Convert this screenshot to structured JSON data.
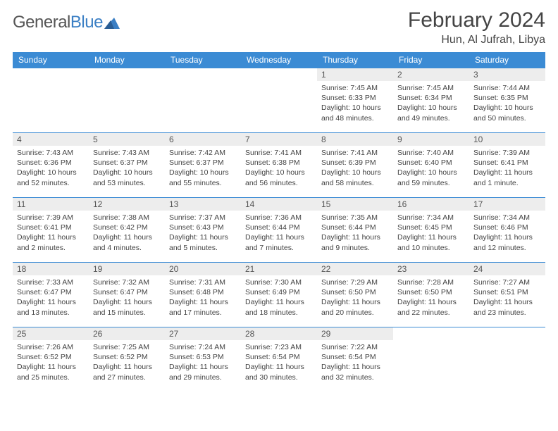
{
  "brand": {
    "part1": "General",
    "part2": "Blue"
  },
  "title": "February 2024",
  "location": "Hun, Al Jufrah, Libya",
  "colors": {
    "header_bg": "#3b8bd4",
    "header_text": "#ffffff",
    "daynum_bg": "#ededed",
    "border": "#3b8bd4",
    "text": "#444444",
    "brand_gray": "#555555",
    "brand_blue": "#3b7fc4"
  },
  "weekdays": [
    "Sunday",
    "Monday",
    "Tuesday",
    "Wednesday",
    "Thursday",
    "Friday",
    "Saturday"
  ],
  "start_day_index": 4,
  "days": [
    {
      "n": 1,
      "sunrise": "7:45 AM",
      "sunset": "6:33 PM",
      "daylight": "10 hours and 48 minutes."
    },
    {
      "n": 2,
      "sunrise": "7:45 AM",
      "sunset": "6:34 PM",
      "daylight": "10 hours and 49 minutes."
    },
    {
      "n": 3,
      "sunrise": "7:44 AM",
      "sunset": "6:35 PM",
      "daylight": "10 hours and 50 minutes."
    },
    {
      "n": 4,
      "sunrise": "7:43 AM",
      "sunset": "6:36 PM",
      "daylight": "10 hours and 52 minutes."
    },
    {
      "n": 5,
      "sunrise": "7:43 AM",
      "sunset": "6:37 PM",
      "daylight": "10 hours and 53 minutes."
    },
    {
      "n": 6,
      "sunrise": "7:42 AM",
      "sunset": "6:37 PM",
      "daylight": "10 hours and 55 minutes."
    },
    {
      "n": 7,
      "sunrise": "7:41 AM",
      "sunset": "6:38 PM",
      "daylight": "10 hours and 56 minutes."
    },
    {
      "n": 8,
      "sunrise": "7:41 AM",
      "sunset": "6:39 PM",
      "daylight": "10 hours and 58 minutes."
    },
    {
      "n": 9,
      "sunrise": "7:40 AM",
      "sunset": "6:40 PM",
      "daylight": "10 hours and 59 minutes."
    },
    {
      "n": 10,
      "sunrise": "7:39 AM",
      "sunset": "6:41 PM",
      "daylight": "11 hours and 1 minute."
    },
    {
      "n": 11,
      "sunrise": "7:39 AM",
      "sunset": "6:41 PM",
      "daylight": "11 hours and 2 minutes."
    },
    {
      "n": 12,
      "sunrise": "7:38 AM",
      "sunset": "6:42 PM",
      "daylight": "11 hours and 4 minutes."
    },
    {
      "n": 13,
      "sunrise": "7:37 AM",
      "sunset": "6:43 PM",
      "daylight": "11 hours and 5 minutes."
    },
    {
      "n": 14,
      "sunrise": "7:36 AM",
      "sunset": "6:44 PM",
      "daylight": "11 hours and 7 minutes."
    },
    {
      "n": 15,
      "sunrise": "7:35 AM",
      "sunset": "6:44 PM",
      "daylight": "11 hours and 9 minutes."
    },
    {
      "n": 16,
      "sunrise": "7:34 AM",
      "sunset": "6:45 PM",
      "daylight": "11 hours and 10 minutes."
    },
    {
      "n": 17,
      "sunrise": "7:34 AM",
      "sunset": "6:46 PM",
      "daylight": "11 hours and 12 minutes."
    },
    {
      "n": 18,
      "sunrise": "7:33 AM",
      "sunset": "6:47 PM",
      "daylight": "11 hours and 13 minutes."
    },
    {
      "n": 19,
      "sunrise": "7:32 AM",
      "sunset": "6:47 PM",
      "daylight": "11 hours and 15 minutes."
    },
    {
      "n": 20,
      "sunrise": "7:31 AM",
      "sunset": "6:48 PM",
      "daylight": "11 hours and 17 minutes."
    },
    {
      "n": 21,
      "sunrise": "7:30 AM",
      "sunset": "6:49 PM",
      "daylight": "11 hours and 18 minutes."
    },
    {
      "n": 22,
      "sunrise": "7:29 AM",
      "sunset": "6:50 PM",
      "daylight": "11 hours and 20 minutes."
    },
    {
      "n": 23,
      "sunrise": "7:28 AM",
      "sunset": "6:50 PM",
      "daylight": "11 hours and 22 minutes."
    },
    {
      "n": 24,
      "sunrise": "7:27 AM",
      "sunset": "6:51 PM",
      "daylight": "11 hours and 23 minutes."
    },
    {
      "n": 25,
      "sunrise": "7:26 AM",
      "sunset": "6:52 PM",
      "daylight": "11 hours and 25 minutes."
    },
    {
      "n": 26,
      "sunrise": "7:25 AM",
      "sunset": "6:52 PM",
      "daylight": "11 hours and 27 minutes."
    },
    {
      "n": 27,
      "sunrise": "7:24 AM",
      "sunset": "6:53 PM",
      "daylight": "11 hours and 29 minutes."
    },
    {
      "n": 28,
      "sunrise": "7:23 AM",
      "sunset": "6:54 PM",
      "daylight": "11 hours and 30 minutes."
    },
    {
      "n": 29,
      "sunrise": "7:22 AM",
      "sunset": "6:54 PM",
      "daylight": "11 hours and 32 minutes."
    }
  ],
  "labels": {
    "sunrise": "Sunrise:",
    "sunset": "Sunset:",
    "daylight": "Daylight:"
  }
}
